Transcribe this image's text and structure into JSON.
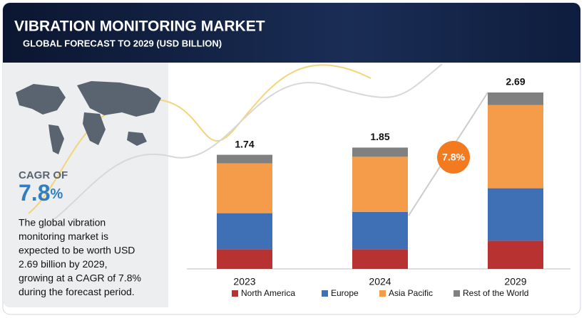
{
  "header": {
    "title": "VIBRATION MONITORING MARKET",
    "subtitle": "GLOBAL FORECAST TO 2029 (USD BILLION)"
  },
  "cagr": {
    "label": "CAGR OF",
    "value": "7.8",
    "unit": "%",
    "badge": "7.8%"
  },
  "description": [
    "The global vibration",
    "monitoring market is",
    "expected to be worth USD",
    "2.69 billion  by 2029,",
    "growing at a CAGR of 7.8%",
    "during the forecast period."
  ],
  "chart_data": {
    "type": "bar",
    "stacked": true,
    "categories": [
      "2023",
      "2024",
      "2029"
    ],
    "totals": [
      1.74,
      1.85,
      2.69
    ],
    "series": [
      {
        "name": "North America",
        "color": "#b83232",
        "values": [
          0.3,
          0.3,
          0.43
        ]
      },
      {
        "name": "Europe",
        "color": "#3f6fb5",
        "values": [
          0.55,
          0.57,
          0.8
        ]
      },
      {
        "name": "Asia Pacific",
        "color": "#f59c4a",
        "values": [
          0.76,
          0.84,
          1.27
        ]
      },
      {
        "name": "Rest of the World",
        "color": "#808080",
        "values": [
          0.13,
          0.14,
          0.19
        ]
      }
    ]
  }
}
